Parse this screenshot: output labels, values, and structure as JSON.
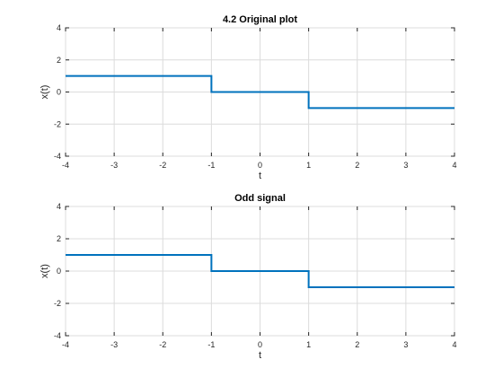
{
  "chart_data": [
    {
      "type": "line",
      "title": "4.2 Original plot",
      "xlabel": "t",
      "ylabel": "x(t)",
      "xlim": [
        -4,
        4
      ],
      "ylim": [
        -4,
        4
      ],
      "xticks": [
        -4,
        -3,
        -2,
        -1,
        0,
        1,
        2,
        3,
        4
      ],
      "yticks": [
        -4,
        -2,
        0,
        2,
        4
      ],
      "grid": true,
      "series": [
        {
          "color": "#0072bd",
          "x": [
            -4,
            -1,
            -1,
            1,
            1,
            4
          ],
          "y": [
            1,
            1,
            0,
            0,
            -1,
            -1
          ]
        }
      ]
    },
    {
      "type": "line",
      "title": "Odd signal",
      "xlabel": "t",
      "ylabel": "x(t)",
      "xlim": [
        -4,
        4
      ],
      "ylim": [
        -4,
        4
      ],
      "xticks": [
        -4,
        -3,
        -2,
        -1,
        0,
        1,
        2,
        3,
        4
      ],
      "yticks": [
        -4,
        -2,
        0,
        2,
        4
      ],
      "grid": true,
      "series": [
        {
          "color": "#0072bd",
          "x": [
            -4,
            -1,
            -1,
            1,
            1,
            4
          ],
          "y": [
            1,
            1,
            0,
            0,
            -1,
            -1
          ]
        }
      ]
    }
  ]
}
